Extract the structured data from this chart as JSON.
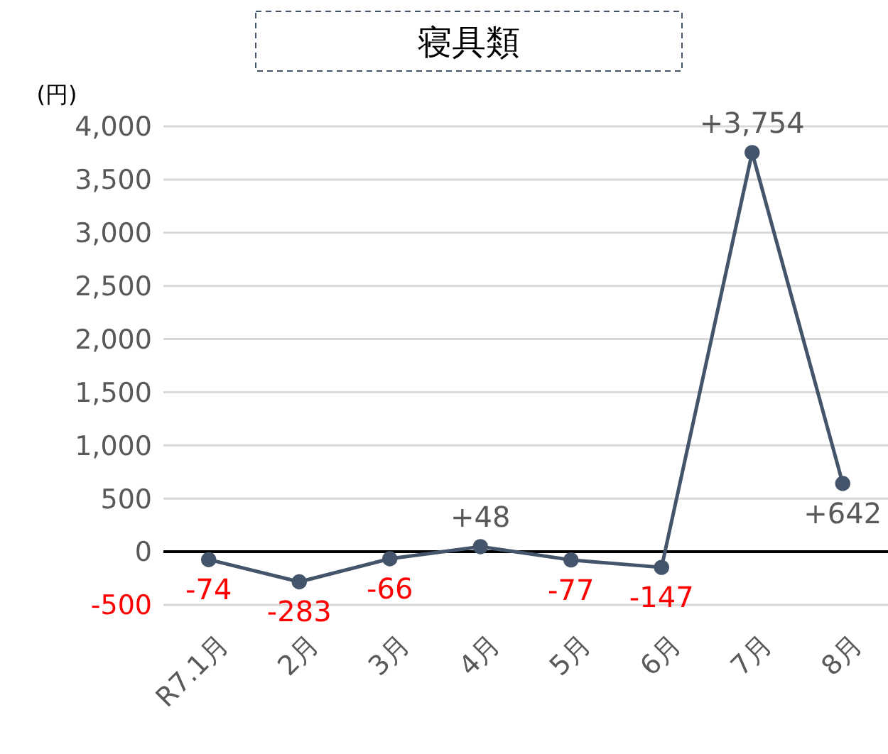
{
  "chart_data": {
    "type": "line",
    "title": "寝具類",
    "ylabel": "(円)",
    "categories": [
      "R7.1月",
      "2月",
      "3月",
      "4月",
      "5月",
      "6月",
      "7月",
      "8月"
    ],
    "series": [
      {
        "color": "#44546a",
        "values": [
          -74,
          -283,
          -66,
          48,
          -77,
          -147,
          3754,
          642
        ],
        "value_labels": [
          "-74",
          "-283",
          "-66",
          "+48",
          "-77",
          "-147",
          "+3,754",
          "+642"
        ]
      }
    ],
    "ylim": [
      -500,
      4000
    ],
    "yticks": [
      {
        "value": -500,
        "label": "-500"
      },
      {
        "value": 0,
        "label": "0"
      },
      {
        "value": 500,
        "label": "500"
      },
      {
        "value": 1000,
        "label": "1,000"
      },
      {
        "value": 1500,
        "label": "1,500"
      },
      {
        "value": 2000,
        "label": "2,000"
      },
      {
        "value": 2500,
        "label": "2,500"
      },
      {
        "value": 3000,
        "label": "3,000"
      },
      {
        "value": 3500,
        "label": "3,500"
      },
      {
        "value": 4000,
        "label": "4,000"
      }
    ],
    "grid": "y",
    "marker": "circle",
    "line_style": "solid"
  }
}
